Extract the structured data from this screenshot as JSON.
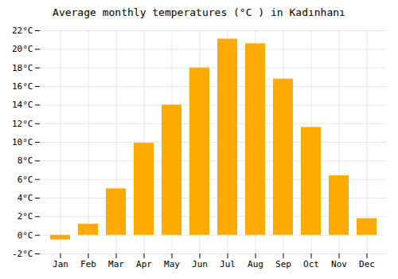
{
  "chart_data": {
    "type": "bar",
    "title": "Average monthly temperatures (°C ) in Kadınhanı",
    "categories": [
      "Jan",
      "Feb",
      "Mar",
      "Apr",
      "May",
      "Jun",
      "Jul",
      "Aug",
      "Sep",
      "Oct",
      "Nov",
      "Dec"
    ],
    "values": [
      -0.5,
      1.2,
      5.0,
      9.9,
      14.0,
      18.0,
      21.1,
      20.6,
      16.8,
      11.6,
      6.4,
      1.8
    ],
    "color": "#FFAA00",
    "ylim": [
      -2,
      22
    ],
    "yticks": [
      {
        "value": -2,
        "label": "-2°C"
      },
      {
        "value": 0,
        "label": "0°C"
      },
      {
        "value": 2,
        "label": "2°C"
      },
      {
        "value": 4,
        "label": "4°C"
      },
      {
        "value": 6,
        "label": "6°C"
      },
      {
        "value": 8,
        "label": "8°C"
      },
      {
        "value": 10,
        "label": "10°C"
      },
      {
        "value": 12,
        "label": "12°C"
      },
      {
        "value": 14,
        "label": "14°C"
      },
      {
        "value": 16,
        "label": "16°C"
      },
      {
        "value": 18,
        "label": "18°C"
      },
      {
        "value": 20,
        "label": "20°C"
      },
      {
        "value": 22,
        "label": "22°C"
      }
    ],
    "grid": true
  }
}
